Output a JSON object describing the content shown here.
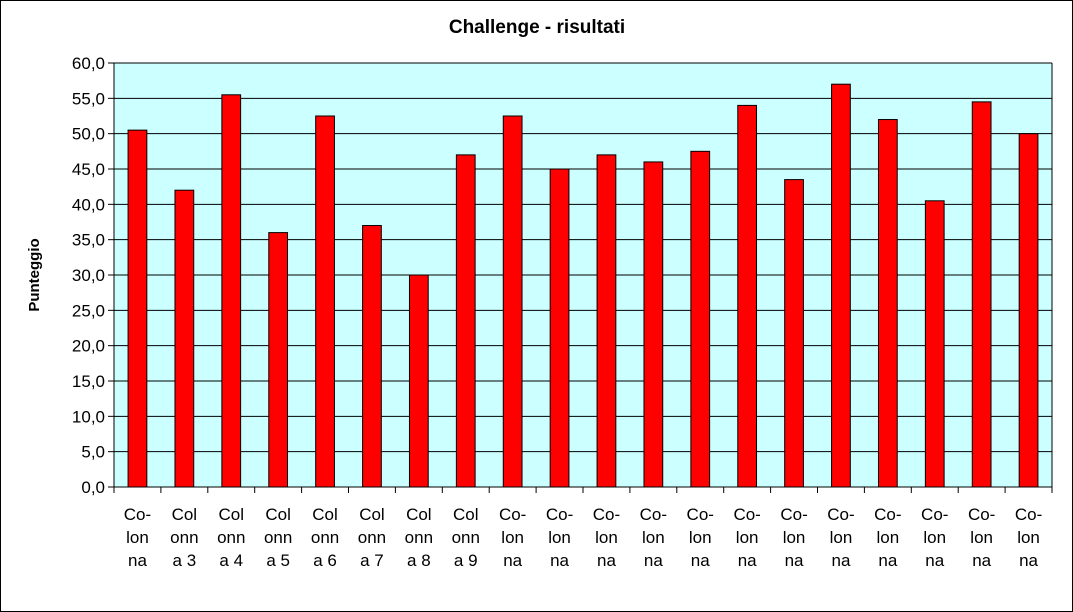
{
  "chart_data": {
    "type": "bar",
    "title": "Challenge - risultati",
    "xlabel": "",
    "ylabel": "Punteggio",
    "ylim": [
      0,
      60
    ],
    "ytick_step": 5,
    "ytick_labels": [
      "0,0",
      "5,0",
      "10,0",
      "15,0",
      "20,0",
      "25,0",
      "30,0",
      "35,0",
      "40,0",
      "45,0",
      "50,0",
      "55,0",
      "60,0"
    ],
    "grid": true,
    "legend": "none",
    "categories": [
      [
        "Co-",
        "lon",
        "na"
      ],
      [
        "Col",
        "onn",
        "a 3"
      ],
      [
        "Col",
        "onn",
        "a 4"
      ],
      [
        "Col",
        "onn",
        "a 5"
      ],
      [
        "Col",
        "onn",
        "a 6"
      ],
      [
        "Col",
        "onn",
        "a 7"
      ],
      [
        "Col",
        "onn",
        "a 8"
      ],
      [
        "Col",
        "onn",
        "a 9"
      ],
      [
        "Co-",
        "lon",
        "na"
      ],
      [
        "Co-",
        "lon",
        "na"
      ],
      [
        "Co-",
        "lon",
        "na"
      ],
      [
        "Co-",
        "lon",
        "na"
      ],
      [
        "Co-",
        "lon",
        "na"
      ],
      [
        "Co-",
        "lon",
        "na"
      ],
      [
        "Co-",
        "lon",
        "na"
      ],
      [
        "Co-",
        "lon",
        "na"
      ],
      [
        "Co-",
        "lon",
        "na"
      ],
      [
        "Co-",
        "lon",
        "na"
      ],
      [
        "Co-",
        "lon",
        "na"
      ],
      [
        "Co-",
        "lon",
        "na"
      ]
    ],
    "values": [
      50.5,
      42.0,
      55.5,
      36.0,
      52.5,
      37.0,
      30.0,
      47.0,
      52.5,
      45.0,
      47.0,
      46.0,
      47.5,
      54.0,
      43.5,
      57.0,
      52.0,
      40.5,
      54.5,
      50.0
    ],
    "colors": {
      "bar": "#ff0000",
      "bar_border": "#000000",
      "plot_background": "#ccffff",
      "gridline": "#000000",
      "axis": "#000000",
      "text": "#000000"
    }
  }
}
